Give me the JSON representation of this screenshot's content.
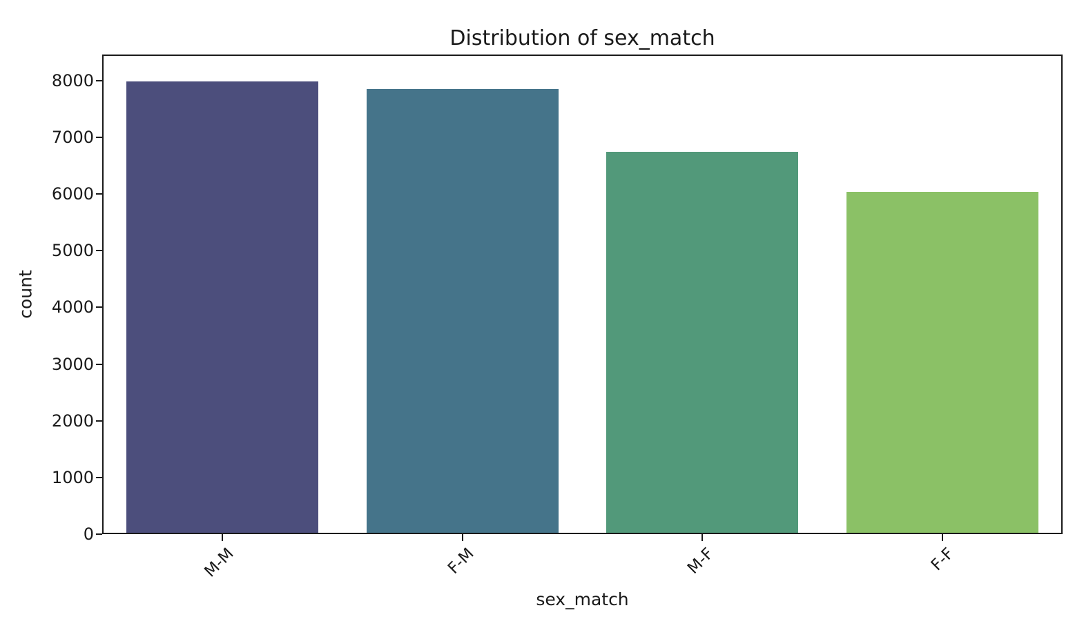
{
  "figure": {
    "background_color": "#ffffff",
    "text_color": "#1a1a1a",
    "spine_color": "#1a1a1a"
  },
  "chart_data": {
    "type": "bar",
    "title": "Distribution of sex_match",
    "xlabel": "sex_match",
    "ylabel": "count",
    "categories": [
      "M-M",
      "F-M",
      "M-F",
      "F-F"
    ],
    "values": [
      7980,
      7850,
      6740,
      6040
    ],
    "bar_colors": [
      "#4c4e7c",
      "#45748a",
      "#52997a",
      "#8bc166"
    ],
    "yticks": [
      0,
      1000,
      2000,
      3000,
      4000,
      5000,
      6000,
      7000,
      8000
    ],
    "ylim": [
      0,
      8460
    ],
    "grid": false,
    "legend": null,
    "x_tick_rotation_deg": 45,
    "bar_width_fraction": 0.8
  }
}
